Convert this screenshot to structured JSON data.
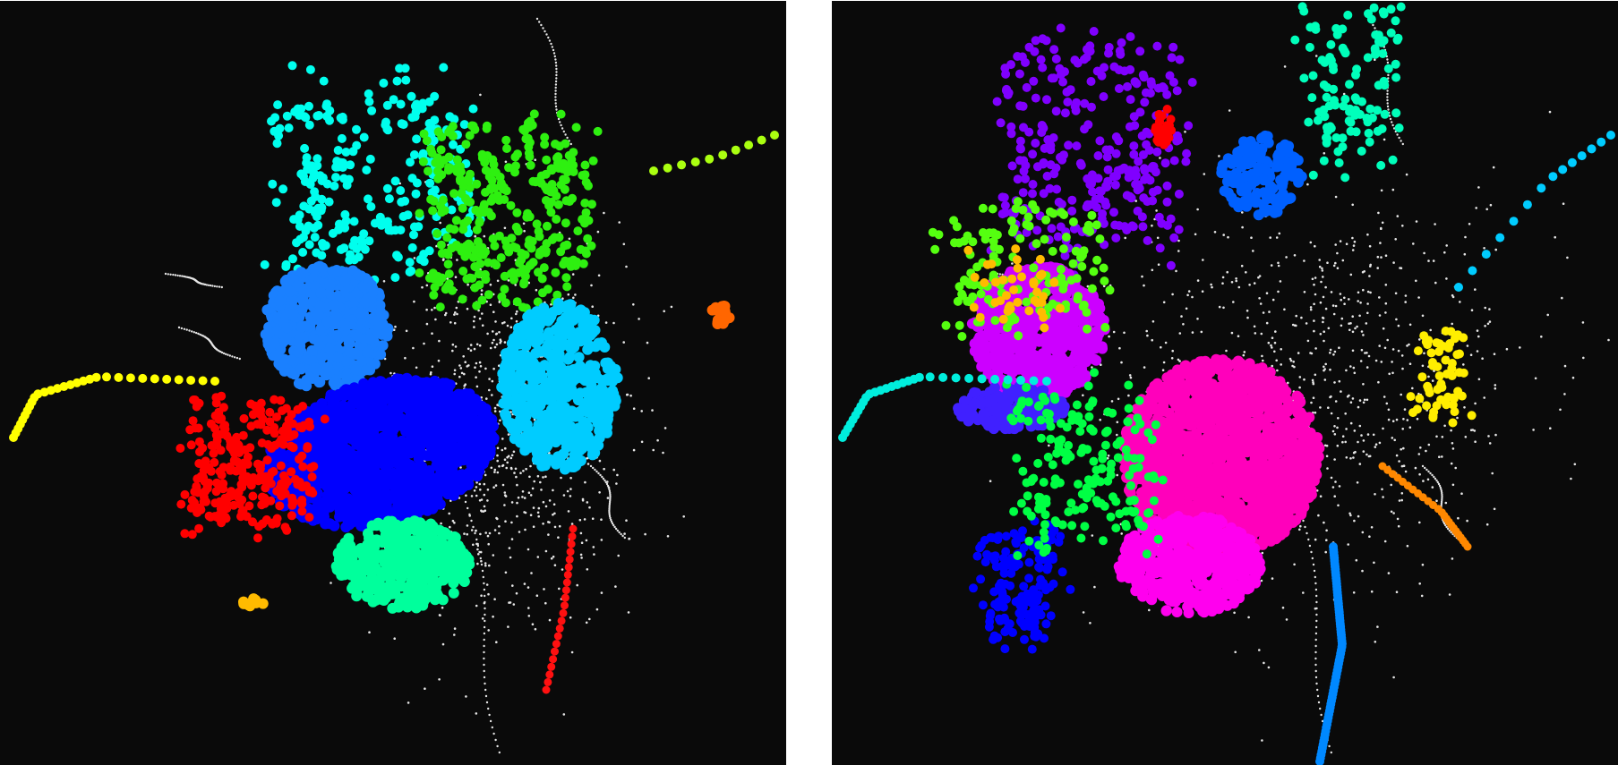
{
  "chart_data": [
    {
      "type": "scatter",
      "title": "",
      "xlabel": "",
      "ylabel": "",
      "axes": "hidden",
      "grid": false,
      "legend": "none",
      "background": "#0a0a0a",
      "noise_color": "#e6e6e6",
      "clusters": [
        {
          "color": "#00ffee",
          "shape": "loops",
          "points": 260
        },
        {
          "color": "#1a80ff",
          "shape": "blob",
          "points": 500
        },
        {
          "color": "#0000ff",
          "shape": "blob",
          "points": 1400
        },
        {
          "color": "#ff0000",
          "shape": "loops",
          "points": 280
        },
        {
          "color": "#2ef010",
          "shape": "loops",
          "points": 340
        },
        {
          "color": "#00ccff",
          "shape": "blob",
          "points": 520
        },
        {
          "color": "#00ff9c",
          "shape": "blob",
          "points": 400
        },
        {
          "color": "#ffff00",
          "shape": "arc",
          "points": 30
        },
        {
          "color": "#aaff10",
          "shape": "trail",
          "points": 10
        },
        {
          "color": "#ff6600",
          "shape": "small-blob",
          "points": 22
        },
        {
          "color": "#ffbb00",
          "shape": "small-blob",
          "points": 10
        },
        {
          "color": "#ff1010",
          "shape": "trail",
          "points": 22
        }
      ]
    },
    {
      "type": "scatter",
      "title": "",
      "xlabel": "",
      "ylabel": "",
      "axes": "hidden",
      "grid": false,
      "legend": "none",
      "background": "#0a0a0a",
      "noise_color": "#e6e6e6",
      "clusters": [
        {
          "color": "#8000ff",
          "shape": "loops",
          "points": 300
        },
        {
          "color": "#cc00ff",
          "shape": "blob",
          "points": 700
        },
        {
          "color": "#ff00bb",
          "shape": "blob",
          "points": 1600
        },
        {
          "color": "#ff00ee",
          "shape": "blob",
          "points": 500
        },
        {
          "color": "#00ffbb",
          "shape": "loops",
          "points": 120
        },
        {
          "color": "#0060ff",
          "shape": "blob",
          "points": 160
        },
        {
          "color": "#4020ff",
          "shape": "blob",
          "points": 200
        },
        {
          "color": "#0000ff",
          "shape": "loops",
          "points": 160
        },
        {
          "color": "#55ff10",
          "shape": "loops",
          "points": 140
        },
        {
          "color": "#ffee00",
          "shape": "loops",
          "points": 60
        },
        {
          "color": "#00ff44",
          "shape": "loops",
          "points": 180
        },
        {
          "color": "#0088ff",
          "shape": "trail",
          "points": 70
        },
        {
          "color": "#00eedd",
          "shape": "arc",
          "points": 30
        },
        {
          "color": "#00ccff",
          "shape": "trail",
          "points": 14
        },
        {
          "color": "#ff8800",
          "shape": "trail",
          "points": 24
        },
        {
          "color": "#ffbb00",
          "shape": "loops",
          "points": 40
        },
        {
          "color": "#ff0000",
          "shape": "small-blob",
          "points": 30
        }
      ]
    }
  ]
}
